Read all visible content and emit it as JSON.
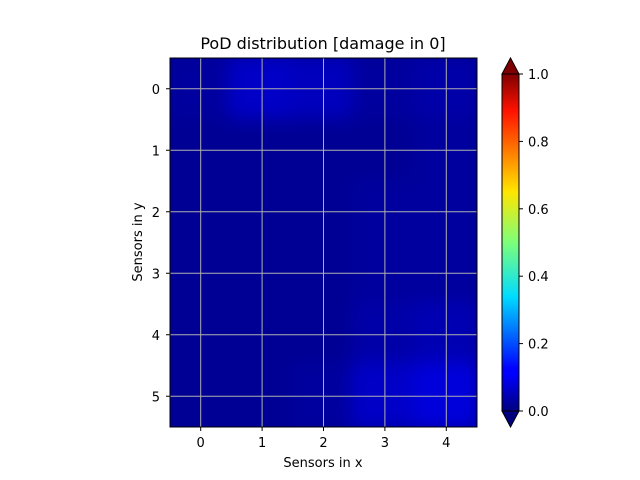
{
  "chart_data": {
    "type": "heatmap",
    "title": "PoD distribution [damage in 0]",
    "xlabel": "Sensors in x",
    "ylabel": "Sensors in y",
    "x_ticks": [
      "0",
      "1",
      "2",
      "3",
      "4"
    ],
    "y_ticks": [
      "0",
      "1",
      "2",
      "3",
      "4",
      "5"
    ],
    "xlim": [
      -0.5,
      4.5
    ],
    "ylim": [
      5.5,
      -0.5
    ],
    "grid": true,
    "colormap": "jet",
    "colorbar": {
      "range": [
        0.0,
        1.0
      ],
      "ticks": [
        "0.0",
        "0.2",
        "0.4",
        "0.6",
        "0.8",
        "1.0"
      ],
      "extend": "both"
    },
    "values": [
      [
        0.03,
        0.07,
        0.06,
        0.03,
        0.04
      ],
      [
        0.02,
        0.02,
        0.02,
        0.02,
        0.03
      ],
      [
        0.02,
        0.02,
        0.02,
        0.03,
        0.03
      ],
      [
        0.02,
        0.02,
        0.02,
        0.03,
        0.03
      ],
      [
        0.02,
        0.02,
        0.02,
        0.04,
        0.05
      ],
      [
        0.02,
        0.02,
        0.03,
        0.07,
        0.09
      ]
    ]
  }
}
